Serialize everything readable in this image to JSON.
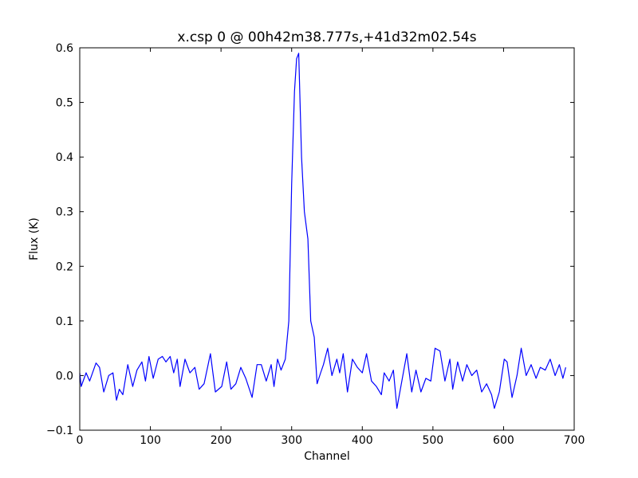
{
  "chart_data": {
    "type": "line",
    "title": "x.csp 0 @ 00h42m38.777s,+41d32m02.54s",
    "xlabel": "Channel",
    "ylabel": "Flux (K)",
    "xlim": [
      0,
      700
    ],
    "ylim": [
      -0.1,
      0.6
    ],
    "xticks": [
      0,
      100,
      200,
      300,
      400,
      500,
      600,
      700
    ],
    "yticks": [
      {
        "value": -0.1,
        "label": "−0.1"
      },
      {
        "value": 0,
        "label": "0.0"
      },
      0.1,
      0.2,
      0.3,
      0.4,
      0.5,
      0.6
    ],
    "grid": false,
    "series": [
      {
        "color": "#0000ff",
        "x": [
          0,
          2,
          9,
          14,
          23,
          28,
          34,
          41,
          47,
          52,
          56,
          61,
          68,
          75,
          81,
          88,
          93,
          98,
          104,
          111,
          117,
          122,
          128,
          133,
          138,
          142,
          149,
          156,
          163,
          169,
          176,
          185,
          192,
          201,
          208,
          214,
          221,
          228,
          235,
          244,
          251,
          257,
          264,
          271,
          275,
          280,
          285,
          291,
          296,
          300,
          304,
          307,
          310,
          314,
          318,
          323,
          327,
          332,
          336,
          341,
          345,
          351,
          357,
          364,
          368,
          373,
          379,
          386,
          393,
          400,
          406,
          413,
          420,
          427,
          431,
          438,
          444,
          449,
          456,
          463,
          470,
          476,
          483,
          490,
          497,
          503,
          510,
          517,
          524,
          528,
          535,
          542,
          548,
          555,
          562,
          569,
          576,
          583,
          587,
          594,
          601,
          605,
          612,
          619,
          625,
          632,
          639,
          646,
          652,
          659,
          666,
          673,
          679,
          684,
          688
        ],
        "values": [
          0.005,
          -0.02,
          0.005,
          -0.01,
          0.023,
          0.015,
          -0.03,
          0.0,
          0.005,
          -0.045,
          -0.025,
          -0.035,
          0.02,
          -0.02,
          0.01,
          0.025,
          -0.01,
          0.035,
          -0.005,
          0.03,
          0.035,
          0.025,
          0.035,
          0.005,
          0.03,
          -0.02,
          0.03,
          0.005,
          0.015,
          -0.025,
          -0.015,
          0.04,
          -0.03,
          -0.02,
          0.025,
          -0.025,
          -0.015,
          0.015,
          -0.005,
          -0.04,
          0.02,
          0.02,
          -0.01,
          0.02,
          -0.02,
          0.03,
          0.01,
          0.03,
          0.1,
          0.35,
          0.52,
          0.58,
          0.59,
          0.4,
          0.3,
          0.25,
          0.1,
          0.07,
          -0.015,
          0.005,
          0.02,
          0.05,
          0.0,
          0.03,
          0.005,
          0.04,
          -0.03,
          0.03,
          0.015,
          0.005,
          0.04,
          -0.01,
          -0.02,
          -0.035,
          0.005,
          -0.01,
          0.01,
          -0.06,
          -0.01,
          0.04,
          -0.03,
          0.01,
          -0.03,
          -0.005,
          -0.01,
          0.05,
          0.045,
          -0.01,
          0.03,
          -0.025,
          0.025,
          -0.01,
          0.02,
          0.0,
          0.01,
          -0.03,
          -0.015,
          -0.035,
          -0.06,
          -0.03,
          0.03,
          0.025,
          -0.04,
          0.0,
          0.05,
          0.0,
          0.02,
          -0.005,
          0.015,
          0.01,
          0.03,
          0.0,
          0.02,
          -0.005,
          0.015
        ]
      }
    ]
  }
}
